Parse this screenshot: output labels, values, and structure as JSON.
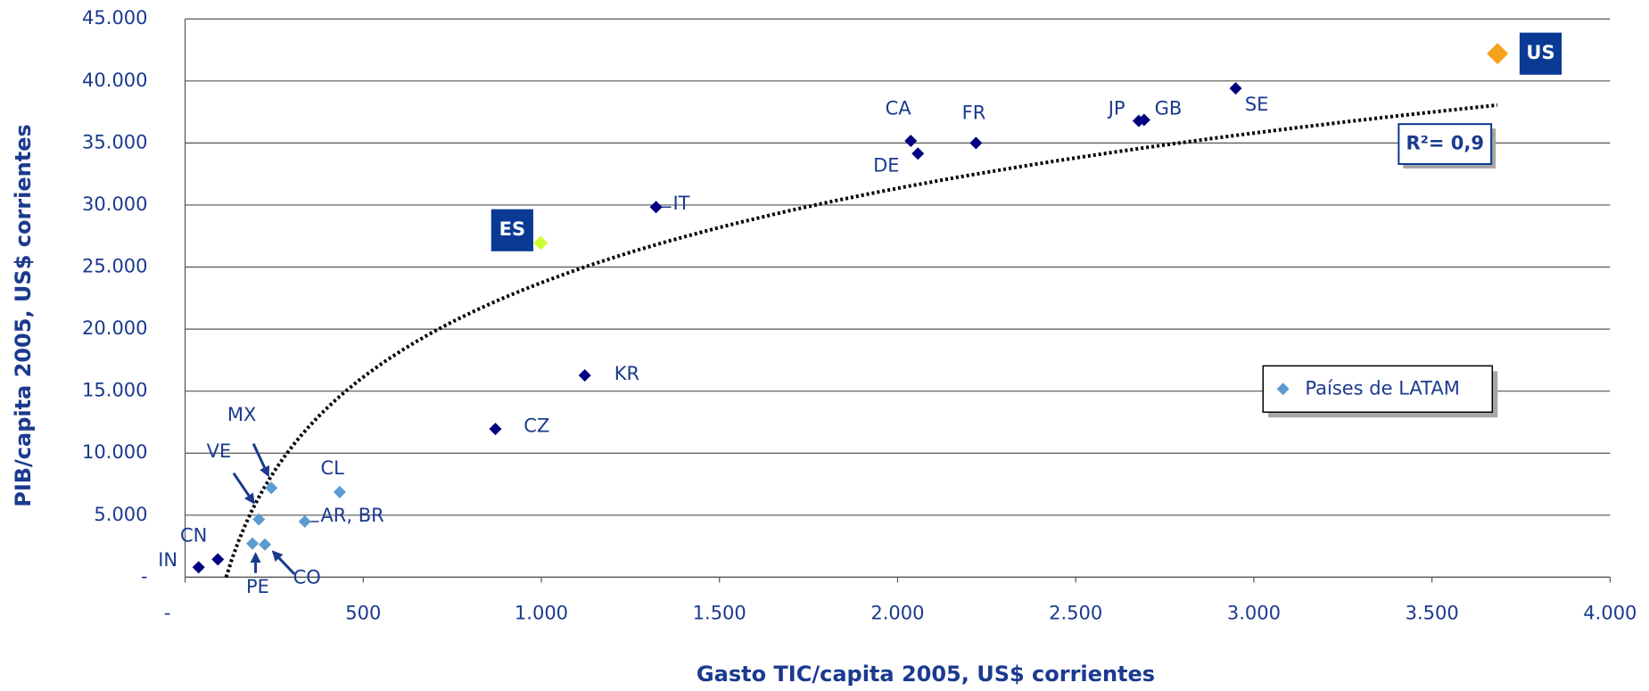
{
  "chart_data": {
    "type": "scatter",
    "xlabel": "Gasto TIC/capita 2005, US$ corrientes",
    "ylabel": "PIB/capita 2005, US$ corrientes",
    "xlim": [
      0,
      4000
    ],
    "ylim": [
      0,
      45000
    ],
    "xticks": [
      {
        "value": 0,
        "label": "-"
      },
      500,
      {
        "value": 1000,
        "label": "1.000"
      },
      {
        "value": 1500,
        "label": "1.500"
      },
      {
        "value": 2000,
        "label": "2.000"
      },
      {
        "value": 2500,
        "label": "2.500"
      },
      {
        "value": 3000,
        "label": "3.000"
      },
      {
        "value": 3500,
        "label": "3.500"
      },
      {
        "value": 4000,
        "label": "4.000"
      }
    ],
    "yticks": [
      {
        "value": 0,
        "label": "-"
      },
      {
        "value": 5000,
        "label": "5.000"
      },
      {
        "value": 10000,
        "label": "10.000"
      },
      {
        "value": 15000,
        "label": "15.000"
      },
      {
        "value": 20000,
        "label": "20.000"
      },
      {
        "value": 25000,
        "label": "25.000"
      },
      {
        "value": 30000,
        "label": "30.000"
      },
      {
        "value": 35000,
        "label": "35.000"
      },
      {
        "value": 40000,
        "label": "40.000"
      },
      {
        "value": 45000,
        "label": "45.000"
      }
    ],
    "grid": true,
    "trendline_label": "R²= 0,9",
    "series": [
      {
        "color": "#000080",
        "labels": [
          "IN",
          "CN",
          "CZ",
          "KR",
          "IT",
          "CA",
          "DE",
          "FR",
          "JP",
          "GB",
          "SE"
        ],
        "x": [
          38,
          92,
          871,
          1122,
          1322,
          2037,
          2057,
          2220,
          2677,
          2692,
          2949
        ],
        "values": [
          800,
          1440,
          11950,
          16270,
          29830,
          35170,
          34150,
          35000,
          36780,
          36860,
          39400
        ]
      },
      {
        "name": "Países de LATAM",
        "color": "#5b9bd0",
        "labels": [
          "VE",
          "MX",
          "CL",
          "AR, BR",
          "PE",
          "CO"
        ],
        "x": [
          207,
          242,
          434,
          336,
          189,
          224
        ],
        "values": [
          4660,
          7200,
          6860,
          4490,
          2710,
          2630
        ]
      },
      {
        "color": "#ccff33",
        "labels": [
          "ES"
        ],
        "x": [
          998
        ],
        "values": [
          26950
        ]
      },
      {
        "color": "#f7a21b",
        "labels": [
          "US"
        ],
        "x": [
          3684
        ],
        "values": [
          42200
        ]
      }
    ]
  }
}
